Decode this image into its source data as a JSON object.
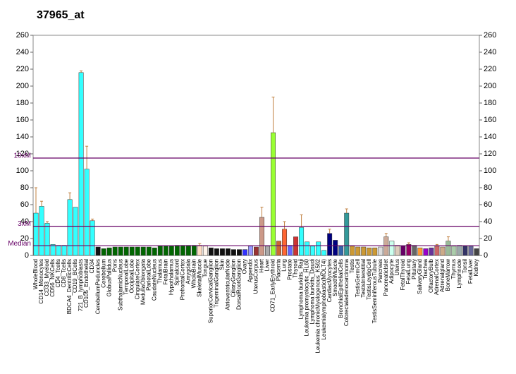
{
  "chart_data": {
    "type": "bar",
    "title": "37965_at",
    "categories": [
      "WholeBlood",
      "CD14_Monocytes",
      "CD33_Myeloid",
      "CD56_NKCells",
      "CD4_Tcells",
      "CD8_Tcells",
      "BDCA4_DentriticCells",
      "CD19_BCells",
      "721_B_lymphoblasts",
      "CD105_Endothelial",
      "CD34",
      "CerebellumPeduncles",
      "Cerebellum",
      "GlobusPallidus",
      "Pons",
      "SubthalamicNucleus",
      "TemporalLobe",
      "OccipitalLobe",
      "CingulateCortex",
      "MedullaOblongata",
      "ParietalLobe",
      "CaudateNucleus",
      "Thalamus",
      "FetalBrain",
      "Hypothalamus",
      "Spinalcord",
      "PrefrontalCortex",
      "Amygdala",
      "WholeBrain",
      "SkeletalMuscle",
      "Tongue",
      "SuperiorCervicalGanglion",
      "TrigeminalGanglion",
      "Skin",
      "AtrioventricularNode",
      "CiliaryGanglion",
      "DorsalRootGanglion",
      "Ovary",
      "Appendix",
      "UterusCorpus",
      "Heart",
      "Liver",
      "CD71_EarlyErythroid",
      "Placenta",
      "Lung",
      "Prostate",
      "Thyroid",
      "Lymphoma burkitts_Raji",
      "Leukemia promyelocytic_HL60",
      "Lymphoma burkitts_Daudi",
      "Leukemia chronicMyelogenous_K562",
      "Leukemialymphoblastic(MOLT4)",
      "CardiacMyocytes",
      "SmoothMuscle",
      "BronchialEpithelialCells",
      "Colorectaladenocarcinoma",
      "Testis",
      "TestisGermCell",
      "TestisInterstitial",
      "TestisLeydigCell",
      "TestisSeminiferousTubule",
      "Pancreas",
      "PancreaticIslet",
      "Adipocyte",
      "Uterus",
      "FetalThyroid",
      "FetalLung",
      "Pituitary",
      "SalivaryGland",
      "Trachea",
      "OlfactoryBulb",
      "AdrenalCortex",
      "Adrenalgland",
      "BoneMarrow",
      "Thymus",
      "Lymphnode",
      "Tonsil",
      "FetalLiver",
      "Kidney"
    ],
    "values": [
      50,
      58,
      38,
      13,
      12,
      12,
      66,
      57,
      216,
      102,
      41,
      10,
      8,
      9,
      10,
      10,
      10,
      10,
      10,
      10,
      10,
      9,
      11,
      11,
      11,
      12,
      12,
      12,
      12,
      12,
      11,
      9,
      8,
      8,
      8,
      7,
      7,
      7,
      11,
      10,
      45,
      11,
      145,
      17,
      31,
      12,
      22,
      33,
      16,
      11,
      16,
      6,
      26,
      18,
      11,
      50,
      11,
      10,
      10,
      9,
      9,
      10,
      22,
      17,
      12,
      11,
      13,
      12,
      9,
      8,
      9,
      11,
      10,
      17,
      11,
      12,
      11,
      11,
      8
    ],
    "errors": [
      30,
      6,
      2,
      null,
      null,
      null,
      8,
      null,
      2,
      27,
      2,
      null,
      null,
      null,
      null,
      null,
      null,
      null,
      null,
      null,
      null,
      null,
      null,
      null,
      null,
      null,
      null,
      null,
      null,
      2,
      null,
      null,
      null,
      null,
      null,
      null,
      null,
      null,
      null,
      null,
      12,
      null,
      42,
      null,
      9,
      null,
      null,
      15,
      null,
      null,
      null,
      null,
      5,
      null,
      null,
      5,
      null,
      null,
      null,
      null,
      null,
      null,
      4,
      null,
      null,
      null,
      2,
      null,
      null,
      null,
      null,
      2,
      null,
      5,
      null,
      null,
      null,
      null,
      null
    ],
    "colors": [
      "#33ffff",
      "#33ffff",
      "#33ffff",
      "#33ffff",
      "#33ffff",
      "#33ffff",
      "#33ffff",
      "#33ffff",
      "#33ffff",
      "#33ffff",
      "#33ffff",
      "#111111",
      "#006600",
      "#006600",
      "#006600",
      "#006600",
      "#006600",
      "#006600",
      "#006600",
      "#006600",
      "#006600",
      "#006600",
      "#006600",
      "#006600",
      "#006600",
      "#006600",
      "#006600",
      "#006600",
      "#006600",
      "#ffddc4",
      "#fff4ea",
      "#111111",
      "#111111",
      "#111111",
      "#111111",
      "#111111",
      "#111111",
      "#3333ff",
      "#9999ff",
      "#993333",
      "#cc9988",
      "#aaaaaa",
      "#99ff33",
      "#cc6633",
      "#ff6633",
      "#6666ff",
      "#cc3333",
      "#33ffff",
      "#33ffff",
      "#33ffff",
      "#33ffff",
      "#33ffff",
      "#000080",
      "#000080",
      "#3366aa",
      "#339999",
      "#cc9933",
      "#cc9933",
      "#cc9933",
      "#cc9933",
      "#cc9933",
      "#dddddd",
      "#ccaa99",
      "#ccffee",
      "#ddccbb",
      "#660066",
      "#990066",
      "#666666",
      "#ff9933",
      "#9900cc",
      "#663399",
      "#cc6666",
      "#ccaa88",
      "#99bb99",
      "#aaccaa",
      "#99aaaa",
      "#333366",
      "#666699",
      "#444444"
    ],
    "ylim": [
      0,
      260
    ],
    "yticks": [
      0,
      20,
      40,
      60,
      80,
      100,
      120,
      140,
      160,
      180,
      200,
      220,
      240,
      260
    ],
    "y2lim": [
      0,
      260
    ],
    "y2ticks": [
      0,
      20,
      40,
      60,
      80,
      100,
      120,
      140,
      160,
      180,
      200,
      220,
      240,
      260
    ],
    "reference_lines": [
      {
        "label": "10xM",
        "value": 115
      },
      {
        "label": "3xM",
        "value": 34.5
      },
      {
        "label": "Median",
        "value": 11.5
      }
    ]
  }
}
